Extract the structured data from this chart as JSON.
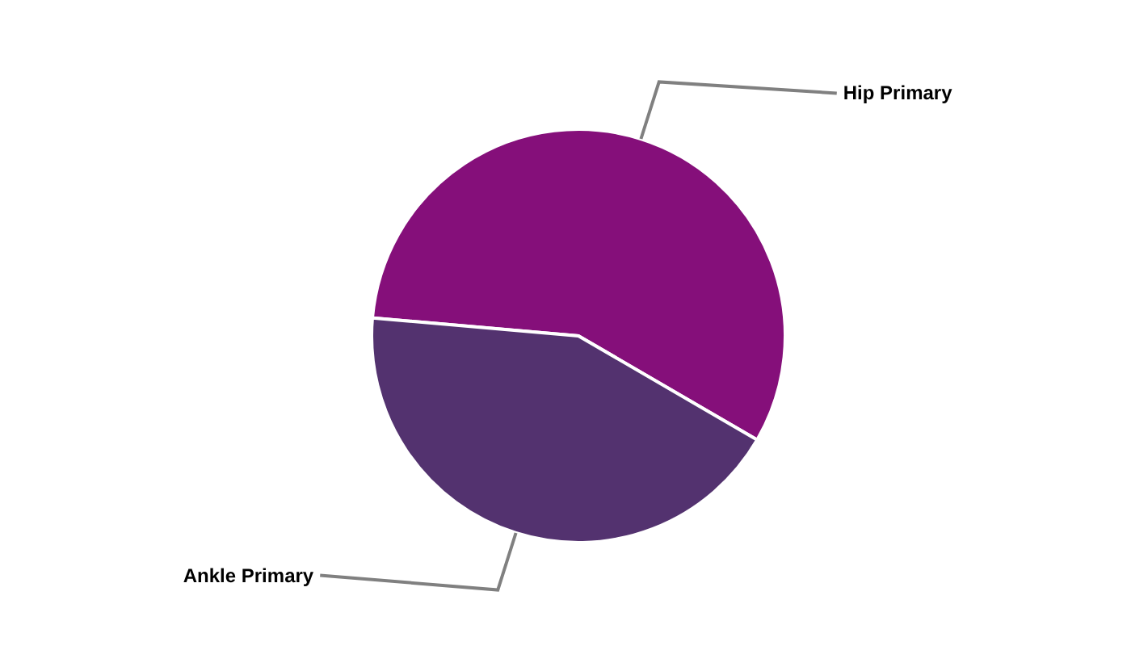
{
  "chart_data": {
    "type": "pie",
    "categories": [
      "Hip Primary",
      "Ankle Primary"
    ],
    "values": [
      57,
      43
    ],
    "colors": [
      "#850f7a",
      "#53326f"
    ]
  }
}
